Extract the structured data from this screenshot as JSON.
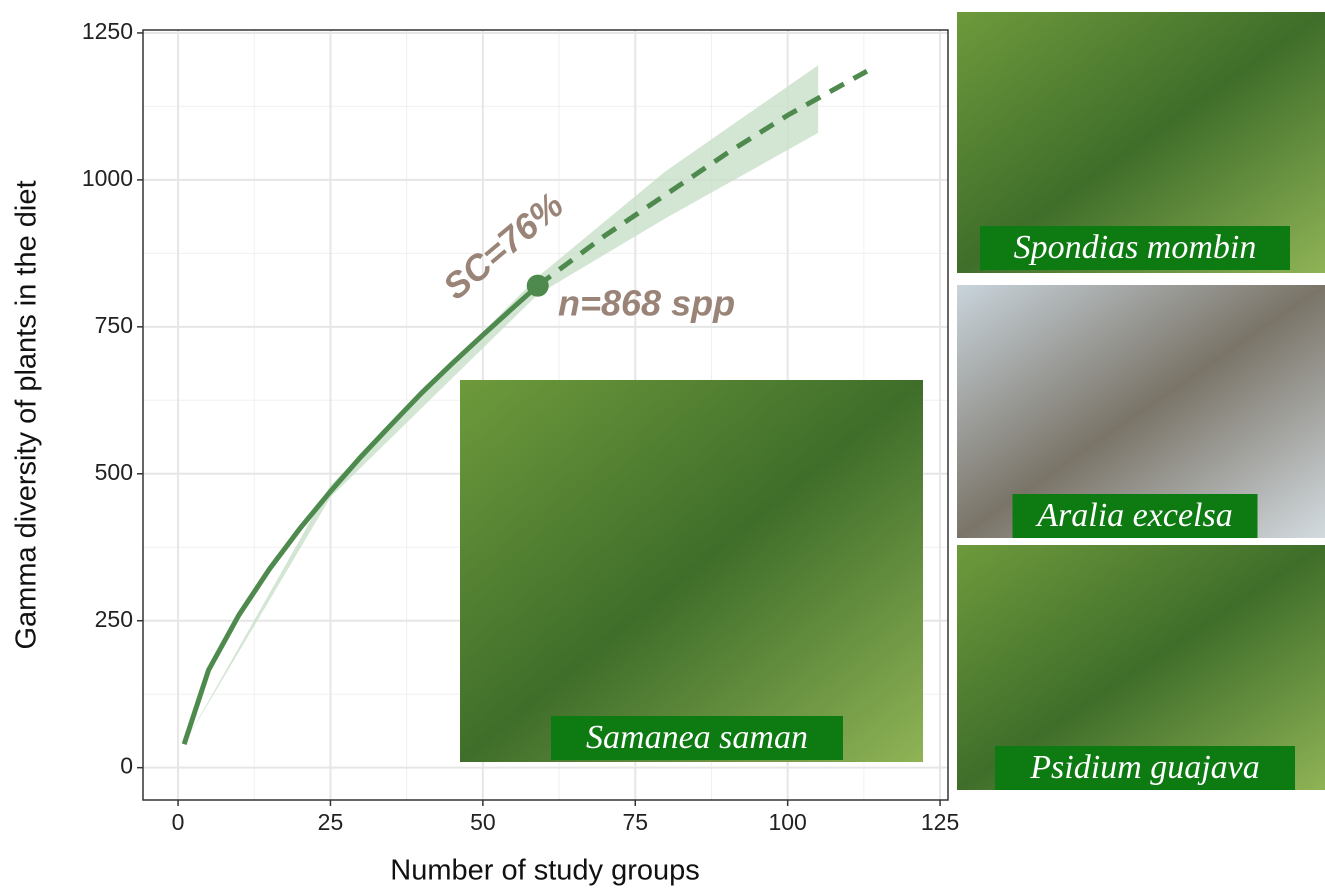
{
  "chart_data": {
    "type": "line",
    "xlabel": "Number of study groups",
    "ylabel": "Gamma diversity of plants in the diet",
    "xlim": [
      -5.75,
      126.3
    ],
    "ylim": [
      -55,
      1255
    ],
    "xticks": [
      0,
      25,
      50,
      75,
      100,
      125
    ],
    "yticks": [
      0,
      250,
      500,
      750,
      1000,
      1250
    ],
    "xminor": [
      12.5,
      37.5,
      62.5,
      87.5,
      112.5
    ],
    "yminor": [
      125,
      375,
      625,
      875,
      1125
    ],
    "grid": true,
    "band": {
      "color": "#c8dec8",
      "x": [
        1,
        25,
        59,
        80,
        105
      ],
      "lower": [
        40,
        460,
        805,
        935,
        1080
      ],
      "upper": [
        40,
        480,
        835,
        1015,
        1195
      ]
    },
    "series": [
      {
        "style": "solid",
        "color": "#4e8a4e",
        "x": [
          1,
          5,
          10,
          15,
          20,
          25,
          30,
          35,
          40,
          45,
          50,
          55,
          59
        ],
        "values": [
          40,
          166,
          260,
          338,
          407,
          470,
          529,
          584,
          638,
          688,
          736,
          783,
          820
        ]
      },
      {
        "style": "dashed",
        "color": "#4e8a4e",
        "x": [
          59,
          70,
          80,
          90,
          100,
          113
        ],
        "values": [
          820,
          905,
          975,
          1045,
          1110,
          1185
        ]
      }
    ],
    "points": [
      {
        "x": 59,
        "y": 820,
        "color": "#4e8a4e"
      }
    ],
    "annotations": [
      "SC=76%",
      "n=868 spp"
    ],
    "photos": [
      "Spondias mombin",
      "Aralia excelsa",
      "Psidium guajava",
      "Samanea saman"
    ]
  }
}
